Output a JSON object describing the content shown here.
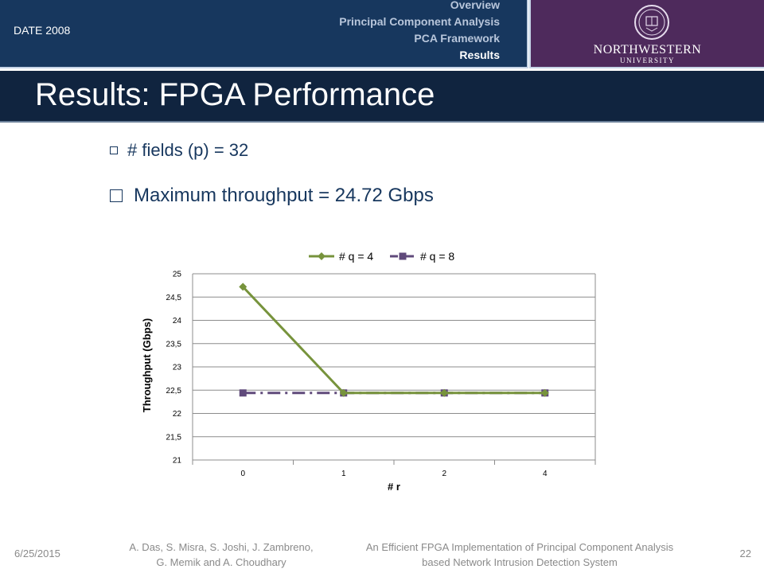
{
  "header": {
    "conference": "DATE 2008",
    "nav": [
      "Overview",
      "Principal Component Analysis",
      "PCA Framework",
      "Results"
    ],
    "nav_active": "Results",
    "logo_name": "NORTHWESTERN",
    "logo_sub": "UNIVERSITY"
  },
  "slide": {
    "title": "Results: FPGA Performance",
    "bullets": [
      "# fields (p) = 32",
      "Maximum throughput = 24.72 Gbps"
    ]
  },
  "chart_data": {
    "type": "line",
    "categories": [
      "0",
      "1",
      "2",
      "4"
    ],
    "series": [
      {
        "name": "# q = 4",
        "values": [
          24.72,
          22.44,
          22.44,
          22.44
        ],
        "color": "#77933c",
        "marker": "diamond",
        "dash": "solid"
      },
      {
        "name": "# q = 8",
        "values": [
          22.44,
          22.44,
          22.44,
          22.44
        ],
        "color": "#604a7b",
        "marker": "square",
        "dash": "dash-dot"
      }
    ],
    "xlabel": "# r",
    "ylabel": "Throughput (Gbps)",
    "ylim": [
      21,
      25
    ],
    "yticks": [
      "21",
      "21,5",
      "22",
      "22,5",
      "23",
      "23,5",
      "24",
      "24,5",
      "25"
    ],
    "grid": true,
    "legend": "top"
  },
  "footer": {
    "date": "6/25/2015",
    "authors_line1": "A. Das, S. Misra, S. Joshi, J. Zambreno,",
    "authors_line2": "G. Memik and A. Choudhary",
    "title_line1": "An Efficient FPGA Implementation of Principal Component Analysis",
    "title_line2": "based Network Intrusion Detection System",
    "page": "22"
  },
  "colors": {
    "header_blue": "#17375e",
    "title_bar": "#10243f",
    "nu_purple": "#4e2a5c"
  }
}
